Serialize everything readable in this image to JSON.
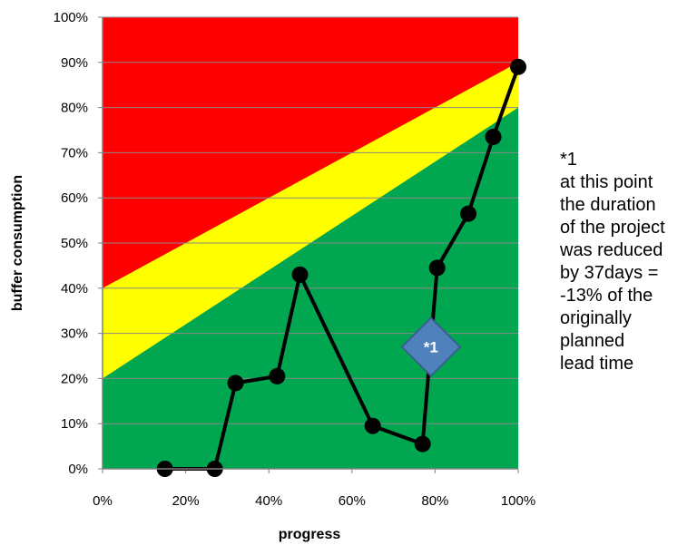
{
  "chart_data": {
    "type": "line",
    "title": "",
    "xlabel": "progress",
    "ylabel": "buffer consumption",
    "xlim": [
      0,
      100
    ],
    "ylim": [
      0,
      100
    ],
    "x_ticks": [
      "0%",
      "20%",
      "40%",
      "60%",
      "80%",
      "100%"
    ],
    "y_ticks": [
      "0%",
      "10%",
      "20%",
      "30%",
      "40%",
      "50%",
      "60%",
      "70%",
      "80%",
      "90%",
      "100%"
    ],
    "grid": true,
    "zones": [
      {
        "color": "#00a650",
        "from_left": 20,
        "to_right": 80
      },
      {
        "color": "#ffff00",
        "from_left": 40,
        "to_right": 90
      },
      {
        "color": "#ff0000",
        "top": 100
      }
    ],
    "series": [
      {
        "color": "#000000",
        "points": [
          {
            "x": 15,
            "y": 0
          },
          {
            "x": 27,
            "y": 0
          },
          {
            "x": 32,
            "y": 19
          },
          {
            "x": 42,
            "y": 20.5
          },
          {
            "x": 47.5,
            "y": 43
          },
          {
            "x": 65,
            "y": 9.5
          },
          {
            "x": 77,
            "y": 5.5
          },
          {
            "x": 80.5,
            "y": 44.5
          },
          {
            "x": 88,
            "y": 56.5
          },
          {
            "x": 94,
            "y": 73.5
          },
          {
            "x": 100,
            "y": 89
          }
        ]
      }
    ],
    "marker": {
      "label": "*1",
      "x": 79,
      "y": 27,
      "color": "#4f81bd"
    }
  },
  "annotation": {
    "lines": [
      "*1",
      "at this point",
      "the duration",
      "of the project",
      "was reduced",
      "by 37days =",
      "-13% of the",
      "originally",
      "planned",
      "lead time"
    ]
  }
}
